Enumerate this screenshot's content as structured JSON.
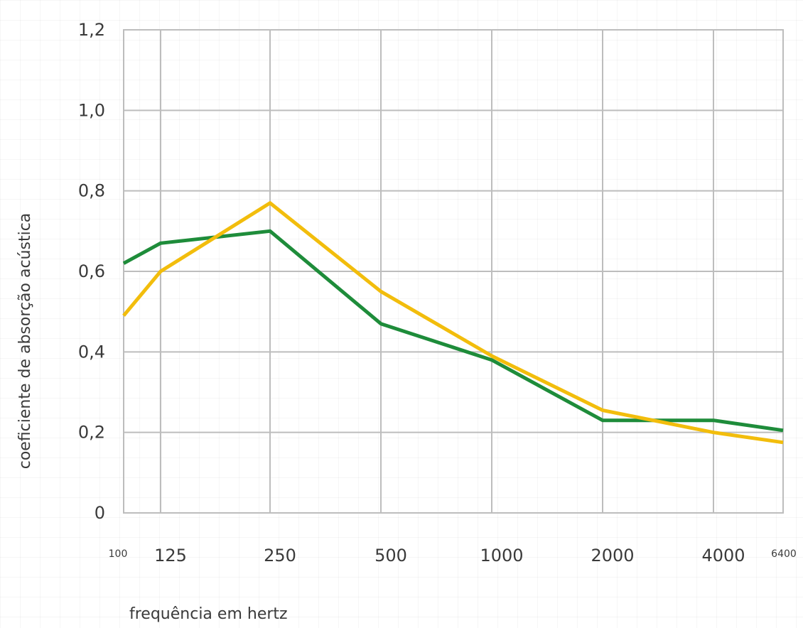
{
  "chart_data": {
    "type": "line",
    "title": "",
    "xlabel": "frequência em hertz",
    "ylabel": "coeficiente de absorção acústica",
    "x_scale": "log2",
    "x": [
      100,
      125,
      250,
      500,
      1000,
      2000,
      4000,
      6400
    ],
    "x_tick_labels": [
      "100",
      "125",
      "250",
      "500",
      "1000",
      "2000",
      "4000",
      "6400"
    ],
    "y_tick_values": [
      0,
      0.2,
      0.4,
      0.6,
      0.8,
      1.0,
      1.2
    ],
    "y_tick_labels": [
      "0",
      "0,2",
      "0,4",
      "0,6",
      "0,8",
      "1,0",
      "1,2"
    ],
    "ylim": [
      0,
      1.2
    ],
    "grid": true,
    "legend": "none",
    "series": [
      {
        "color": "#1e8c3a",
        "values": [
          0.62,
          0.67,
          0.7,
          0.47,
          0.38,
          0.23,
          0.23,
          0.205
        ]
      },
      {
        "color": "#f2bd0c",
        "values": [
          0.49,
          0.6,
          0.77,
          0.55,
          0.39,
          0.255,
          0.2,
          0.175
        ]
      }
    ]
  }
}
